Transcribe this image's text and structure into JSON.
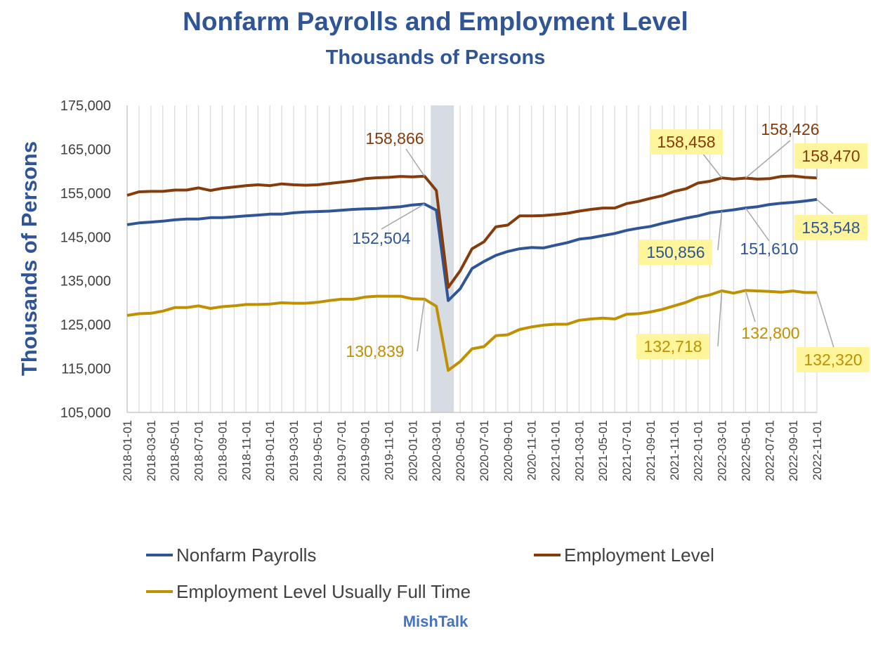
{
  "title": "Nonfarm Payrolls and Employment Level",
  "subtitle": "Thousands of Persons",
  "source": "MishTalk",
  "chart_data": {
    "type": "line",
    "title": "Nonfarm Payrolls and Employment Level",
    "subtitle": "Thousands of Persons",
    "ylabel": "Thousands of  Persons",
    "xlabel": "",
    "ylim": [
      105000,
      175000
    ],
    "yticks": [
      "105,000",
      "115,000",
      "125,000",
      "135,000",
      "145,000",
      "155,000",
      "165,000",
      "175,000"
    ],
    "x": [
      "2018-01-01",
      "2018-02-01",
      "2018-03-01",
      "2018-04-01",
      "2018-05-01",
      "2018-06-01",
      "2018-07-01",
      "2018-08-01",
      "2018-09-01",
      "2018-10-01",
      "2018-11-01",
      "2018-12-01",
      "2019-01-01",
      "2019-02-01",
      "2019-03-01",
      "2019-04-01",
      "2019-05-01",
      "2019-06-01",
      "2019-07-01",
      "2019-08-01",
      "2019-09-01",
      "2019-10-01",
      "2019-11-01",
      "2019-12-01",
      "2020-01-01",
      "2020-02-01",
      "2020-03-01",
      "2020-04-01",
      "2020-05-01",
      "2020-06-01",
      "2020-07-01",
      "2020-08-01",
      "2020-09-01",
      "2020-10-01",
      "2020-11-01",
      "2020-12-01",
      "2021-01-01",
      "2021-02-01",
      "2021-03-01",
      "2021-04-01",
      "2021-05-01",
      "2021-06-01",
      "2021-07-01",
      "2021-08-01",
      "2021-09-01",
      "2021-10-01",
      "2021-11-01",
      "2021-12-01",
      "2022-01-01",
      "2022-02-01",
      "2022-03-01",
      "2022-04-01",
      "2022-05-01",
      "2022-06-01",
      "2022-07-01",
      "2022-08-01",
      "2022-09-01",
      "2022-10-01",
      "2022-11-01"
    ],
    "xtick_labels": [
      "2018-01-01",
      "2018-03-01",
      "2018-05-01",
      "2018-07-01",
      "2018-09-01",
      "2018-11-01",
      "2019-01-01",
      "2019-03-01",
      "2019-05-01",
      "2019-07-01",
      "2019-09-01",
      "2019-11-01",
      "2020-01-01",
      "2020-03-01",
      "2020-05-01",
      "2020-07-01",
      "2020-09-01",
      "2020-11-01",
      "2021-01-01",
      "2021-03-01",
      "2021-05-01",
      "2021-07-01",
      "2021-09-01",
      "2021-11-01",
      "2022-01-01",
      "2022-03-01",
      "2022-05-01",
      "2022-07-01",
      "2022-09-01",
      "2022-11-01"
    ],
    "recession_shade": [
      "2020-03-01",
      "2020-04-01"
    ],
    "grid": "vertical",
    "legend_position": "bottom",
    "series": [
      {
        "name": "Nonfarm Payrolls",
        "color": "#2F5597",
        "values": [
          147800,
          148200,
          148400,
          148600,
          148900,
          149100,
          149100,
          149400,
          149400,
          149600,
          149800,
          150000,
          150200,
          150200,
          150500,
          150700,
          150800,
          150900,
          151100,
          151300,
          151400,
          151500,
          151700,
          151900,
          152300,
          152504,
          151100,
          130500,
          133200,
          137800,
          139400,
          140800,
          141700,
          142300,
          142600,
          142500,
          143100,
          143700,
          144500,
          144800,
          145300,
          145800,
          146500,
          147000,
          147400,
          148100,
          148700,
          149300,
          149800,
          150500,
          150856,
          151200,
          151610,
          151900,
          152400,
          152700,
          152900,
          153200,
          153548
        ],
        "labels": [
          {
            "text": "152,504",
            "index": 25,
            "highlight": false
          },
          {
            "text": "150,856",
            "index": 50,
            "highlight": true
          },
          {
            "text": "151,610",
            "index": 52,
            "highlight": false
          },
          {
            "text": "153,548",
            "index": 58,
            "highlight": true
          }
        ]
      },
      {
        "name": "Employment Level",
        "color": "#843C0C",
        "values": [
          154500,
          155300,
          155400,
          155400,
          155700,
          155700,
          156200,
          155600,
          156100,
          156400,
          156700,
          156900,
          156700,
          157100,
          156900,
          156800,
          156900,
          157200,
          157500,
          157800,
          158300,
          158500,
          158600,
          158800,
          158700,
          158866,
          155600,
          133500,
          137300,
          142300,
          143900,
          147300,
          147700,
          149800,
          149800,
          149900,
          150100,
          150400,
          150900,
          151300,
          151600,
          151600,
          152600,
          153100,
          153800,
          154400,
          155400,
          156000,
          157300,
          157700,
          158458,
          158200,
          158426,
          158200,
          158300,
          158800,
          158900,
          158600,
          158470
        ],
        "labels": [
          {
            "text": "158,866",
            "index": 25,
            "highlight": false
          },
          {
            "text": "158,458",
            "index": 50,
            "highlight": true
          },
          {
            "text": "158,426",
            "index": 52,
            "highlight": false
          },
          {
            "text": "158,470",
            "index": 58,
            "highlight": true
          }
        ]
      },
      {
        "name": "Employment Level Usually Full Time",
        "color": "#BF9000",
        "values": [
          127100,
          127500,
          127600,
          128100,
          128900,
          128900,
          129300,
          128700,
          129100,
          129300,
          129600,
          129600,
          129700,
          130000,
          129900,
          129900,
          130100,
          130500,
          130800,
          130800,
          131300,
          131500,
          131500,
          131500,
          130900,
          130839,
          129200,
          114600,
          116600,
          119500,
          120000,
          122500,
          122700,
          123900,
          124500,
          124900,
          125100,
          125100,
          126000,
          126300,
          126500,
          126300,
          127400,
          127500,
          127900,
          128500,
          129300,
          130100,
          131200,
          131800,
          132718,
          132200,
          132800,
          132700,
          132600,
          132400,
          132700,
          132320,
          132320
        ],
        "labels": [
          {
            "text": "130,839",
            "index": 25,
            "highlight": false
          },
          {
            "text": "132,718",
            "index": 50,
            "highlight": true
          },
          {
            "text": "132,800",
            "index": 52,
            "highlight": false
          },
          {
            "text": "132,320",
            "index": 58,
            "highlight": true
          }
        ]
      }
    ]
  }
}
